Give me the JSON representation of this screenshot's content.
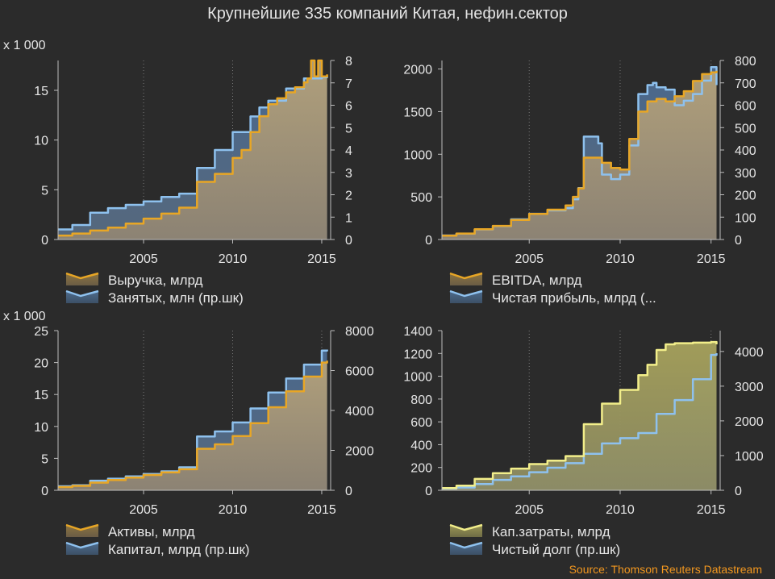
{
  "title": "Крупнейшие 335 компаний Китая, нефин.сектор",
  "source": "Source: Thomson Reuters Datastream",
  "colors": {
    "background": "#2b2b2b",
    "gold": "#e8a625",
    "blue": "#8ec1ee",
    "yellow": "#f2ee8a",
    "grid": "#7a7a7a",
    "source": "#f2971f"
  },
  "chart_data": [
    {
      "type": "area",
      "left_multiplier": "x 1 000",
      "x_ticks": [
        2005,
        2010,
        2015
      ],
      "x_range": [
        2000.2,
        2015.5
      ],
      "left_axis": {
        "range": [
          0,
          18
        ],
        "ticks": [
          0,
          5,
          10,
          15
        ]
      },
      "right_axis": {
        "range": [
          0,
          8
        ],
        "ticks": [
          0,
          1,
          2,
          3,
          4,
          5,
          6,
          7,
          8
        ]
      },
      "legend": [
        "Выручка, млрд",
        "Занятых, млн (пр.шк)"
      ],
      "series": [
        {
          "name": "Выручка, млрд",
          "axis": "left",
          "style": "gold",
          "x": [
            2000.2,
            2001,
            2002,
            2003,
            2004,
            2005,
            2006,
            2007,
            2008,
            2009,
            2010,
            2010.5,
            2011,
            2011.5,
            2012,
            2012.5,
            2013,
            2013.5,
            2014,
            2014.2,
            2014.4,
            2014.6,
            2014.8,
            2015,
            2015.3
          ],
          "values": [
            0.4,
            0.6,
            0.9,
            1.2,
            1.6,
            2.1,
            2.6,
            3.2,
            5.8,
            6.6,
            8.2,
            9.0,
            10.8,
            12.4,
            13.6,
            14.2,
            14.8,
            15.3,
            15.8,
            16.2,
            18.0,
            16.4,
            18.0,
            16.4,
            16.6
          ]
        },
        {
          "name": "Занятых, млн (пр.шк)",
          "axis": "right",
          "style": "blue",
          "x": [
            2000.2,
            2001,
            2002,
            2003,
            2004,
            2005,
            2006,
            2007,
            2008,
            2009,
            2010,
            2011,
            2011.5,
            2012,
            2013,
            2014,
            2015,
            2015.3
          ],
          "values": [
            0.45,
            0.65,
            1.2,
            1.4,
            1.55,
            1.7,
            1.9,
            2.05,
            3.2,
            4.0,
            4.8,
            5.5,
            5.9,
            6.2,
            6.75,
            7.2,
            7.25,
            7.3
          ]
        }
      ]
    },
    {
      "type": "area",
      "x_ticks": [
        2005,
        2010,
        2015
      ],
      "x_range": [
        2000.2,
        2015.5
      ],
      "left_axis": {
        "range": [
          0,
          2100
        ],
        "ticks": [
          0,
          500,
          1000,
          1500,
          2000
        ]
      },
      "right_axis": {
        "range": [
          0,
          800
        ],
        "ticks": [
          0,
          100,
          200,
          300,
          400,
          500,
          600,
          700,
          800
        ]
      },
      "legend": [
        "EBITDA, млрд",
        "Чистая прибыль, млрд (..."
      ],
      "series": [
        {
          "name": "EBITDA, млрд",
          "axis": "left",
          "style": "gold",
          "x": [
            2000.2,
            2001,
            2002,
            2003,
            2004,
            2005,
            2006,
            2007,
            2007.4,
            2007.7,
            2008,
            2009,
            2009.5,
            2010,
            2010.5,
            2011,
            2011.5,
            2012,
            2012.5,
            2013,
            2013.5,
            2014,
            2014.5,
            2015,
            2015.3
          ],
          "values": [
            45,
            70,
            120,
            160,
            230,
            300,
            350,
            400,
            500,
            600,
            960,
            900,
            840,
            820,
            1180,
            1500,
            1620,
            1650,
            1620,
            1680,
            1740,
            1860,
            1940,
            1960,
            1980
          ]
        },
        {
          "name": "Чистая прибыль, млрд (...",
          "axis": "right",
          "style": "blue",
          "x": [
            2000.2,
            2001,
            2002,
            2003,
            2004,
            2005,
            2006,
            2007,
            2007.4,
            2007.7,
            2008,
            2008.3,
            2008.8,
            2009,
            2009.5,
            2010,
            2010.5,
            2011,
            2011.5,
            2011.8,
            2012,
            2012.5,
            2013,
            2013.5,
            2014,
            2014.5,
            2015,
            2015.3
          ],
          "values": [
            18,
            26,
            45,
            60,
            90,
            115,
            130,
            140,
            180,
            230,
            460,
            460,
            430,
            290,
            270,
            290,
            420,
            650,
            690,
            700,
            680,
            670,
            600,
            620,
            650,
            710,
            770,
            690
          ]
        }
      ]
    },
    {
      "type": "area",
      "left_multiplier": "x 1 000",
      "x_ticks": [
        2005,
        2010,
        2015
      ],
      "x_range": [
        2000.2,
        2015.5
      ],
      "left_axis": {
        "range": [
          0,
          25
        ],
        "ticks": [
          0,
          5,
          10,
          15,
          20,
          25
        ]
      },
      "right_axis": {
        "range": [
          0,
          8000
        ],
        "ticks": [
          0,
          2000,
          4000,
          6000,
          8000
        ]
      },
      "legend": [
        "Активы, млрд",
        "Капитал, млрд (пр.шк)"
      ],
      "series": [
        {
          "name": "Активы, млрд",
          "axis": "left",
          "style": "gold",
          "x": [
            2000.2,
            2001,
            2002,
            2003,
            2004,
            2005,
            2006,
            2007,
            2008,
            2009,
            2010,
            2011,
            2012,
            2013,
            2014,
            2015,
            2015.3
          ],
          "values": [
            0.5,
            0.7,
            1.2,
            1.6,
            2.0,
            2.4,
            2.8,
            3.3,
            6.5,
            7.2,
            8.5,
            10.5,
            13.0,
            15.5,
            17.8,
            20.0,
            20.3
          ]
        },
        {
          "name": "Капитал, млрд (пр.шк)",
          "axis": "right",
          "style": "blue",
          "x": [
            2000.2,
            2001,
            2002,
            2003,
            2004,
            2005,
            2006,
            2007,
            2008,
            2009,
            2010,
            2011,
            2012,
            2013,
            2014,
            2015,
            2015.3
          ],
          "values": [
            200,
            250,
            480,
            580,
            700,
            820,
            950,
            1150,
            2700,
            2950,
            3400,
            4100,
            4900,
            5600,
            6300,
            7000,
            7050
          ]
        }
      ]
    },
    {
      "type": "area",
      "x_ticks": [
        2005,
        2010,
        2015
      ],
      "x_range": [
        2000.2,
        2015.5
      ],
      "left_axis": {
        "range": [
          0,
          1400
        ],
        "ticks": [
          0,
          200,
          400,
          600,
          800,
          1000,
          1200,
          1400
        ]
      },
      "right_axis": {
        "range": [
          0,
          4600
        ],
        "ticks": [
          0,
          1000,
          2000,
          3000,
          4000
        ]
      },
      "legend": [
        "Кап.затраты, млрд",
        "Чистый долг (пр.шк)"
      ],
      "series": [
        {
          "name": "Кап.затраты, млрд",
          "axis": "left",
          "style": "yellow",
          "x": [
            2000.2,
            2001,
            2002,
            2003,
            2004,
            2005,
            2006,
            2007,
            2008,
            2009,
            2010,
            2011,
            2011.5,
            2012,
            2012.5,
            2013,
            2014,
            2015,
            2015.3
          ],
          "values": [
            20,
            40,
            100,
            150,
            190,
            230,
            260,
            300,
            580,
            760,
            880,
            1010,
            1100,
            1230,
            1280,
            1290,
            1295,
            1300,
            1280
          ]
        },
        {
          "name": "Чистый долг (пр.шк)",
          "axis": "right",
          "style": "blue",
          "x": [
            2000.2,
            2001,
            2002,
            2003,
            2004,
            2005,
            2006,
            2007,
            2008,
            2009,
            2010,
            2011,
            2012,
            2013,
            2014,
            2015,
            2015.3
          ],
          "values": [
            50,
            80,
            180,
            300,
            400,
            520,
            650,
            780,
            1050,
            1350,
            1500,
            1650,
            2200,
            2600,
            3200,
            3900,
            3950
          ]
        }
      ]
    }
  ]
}
